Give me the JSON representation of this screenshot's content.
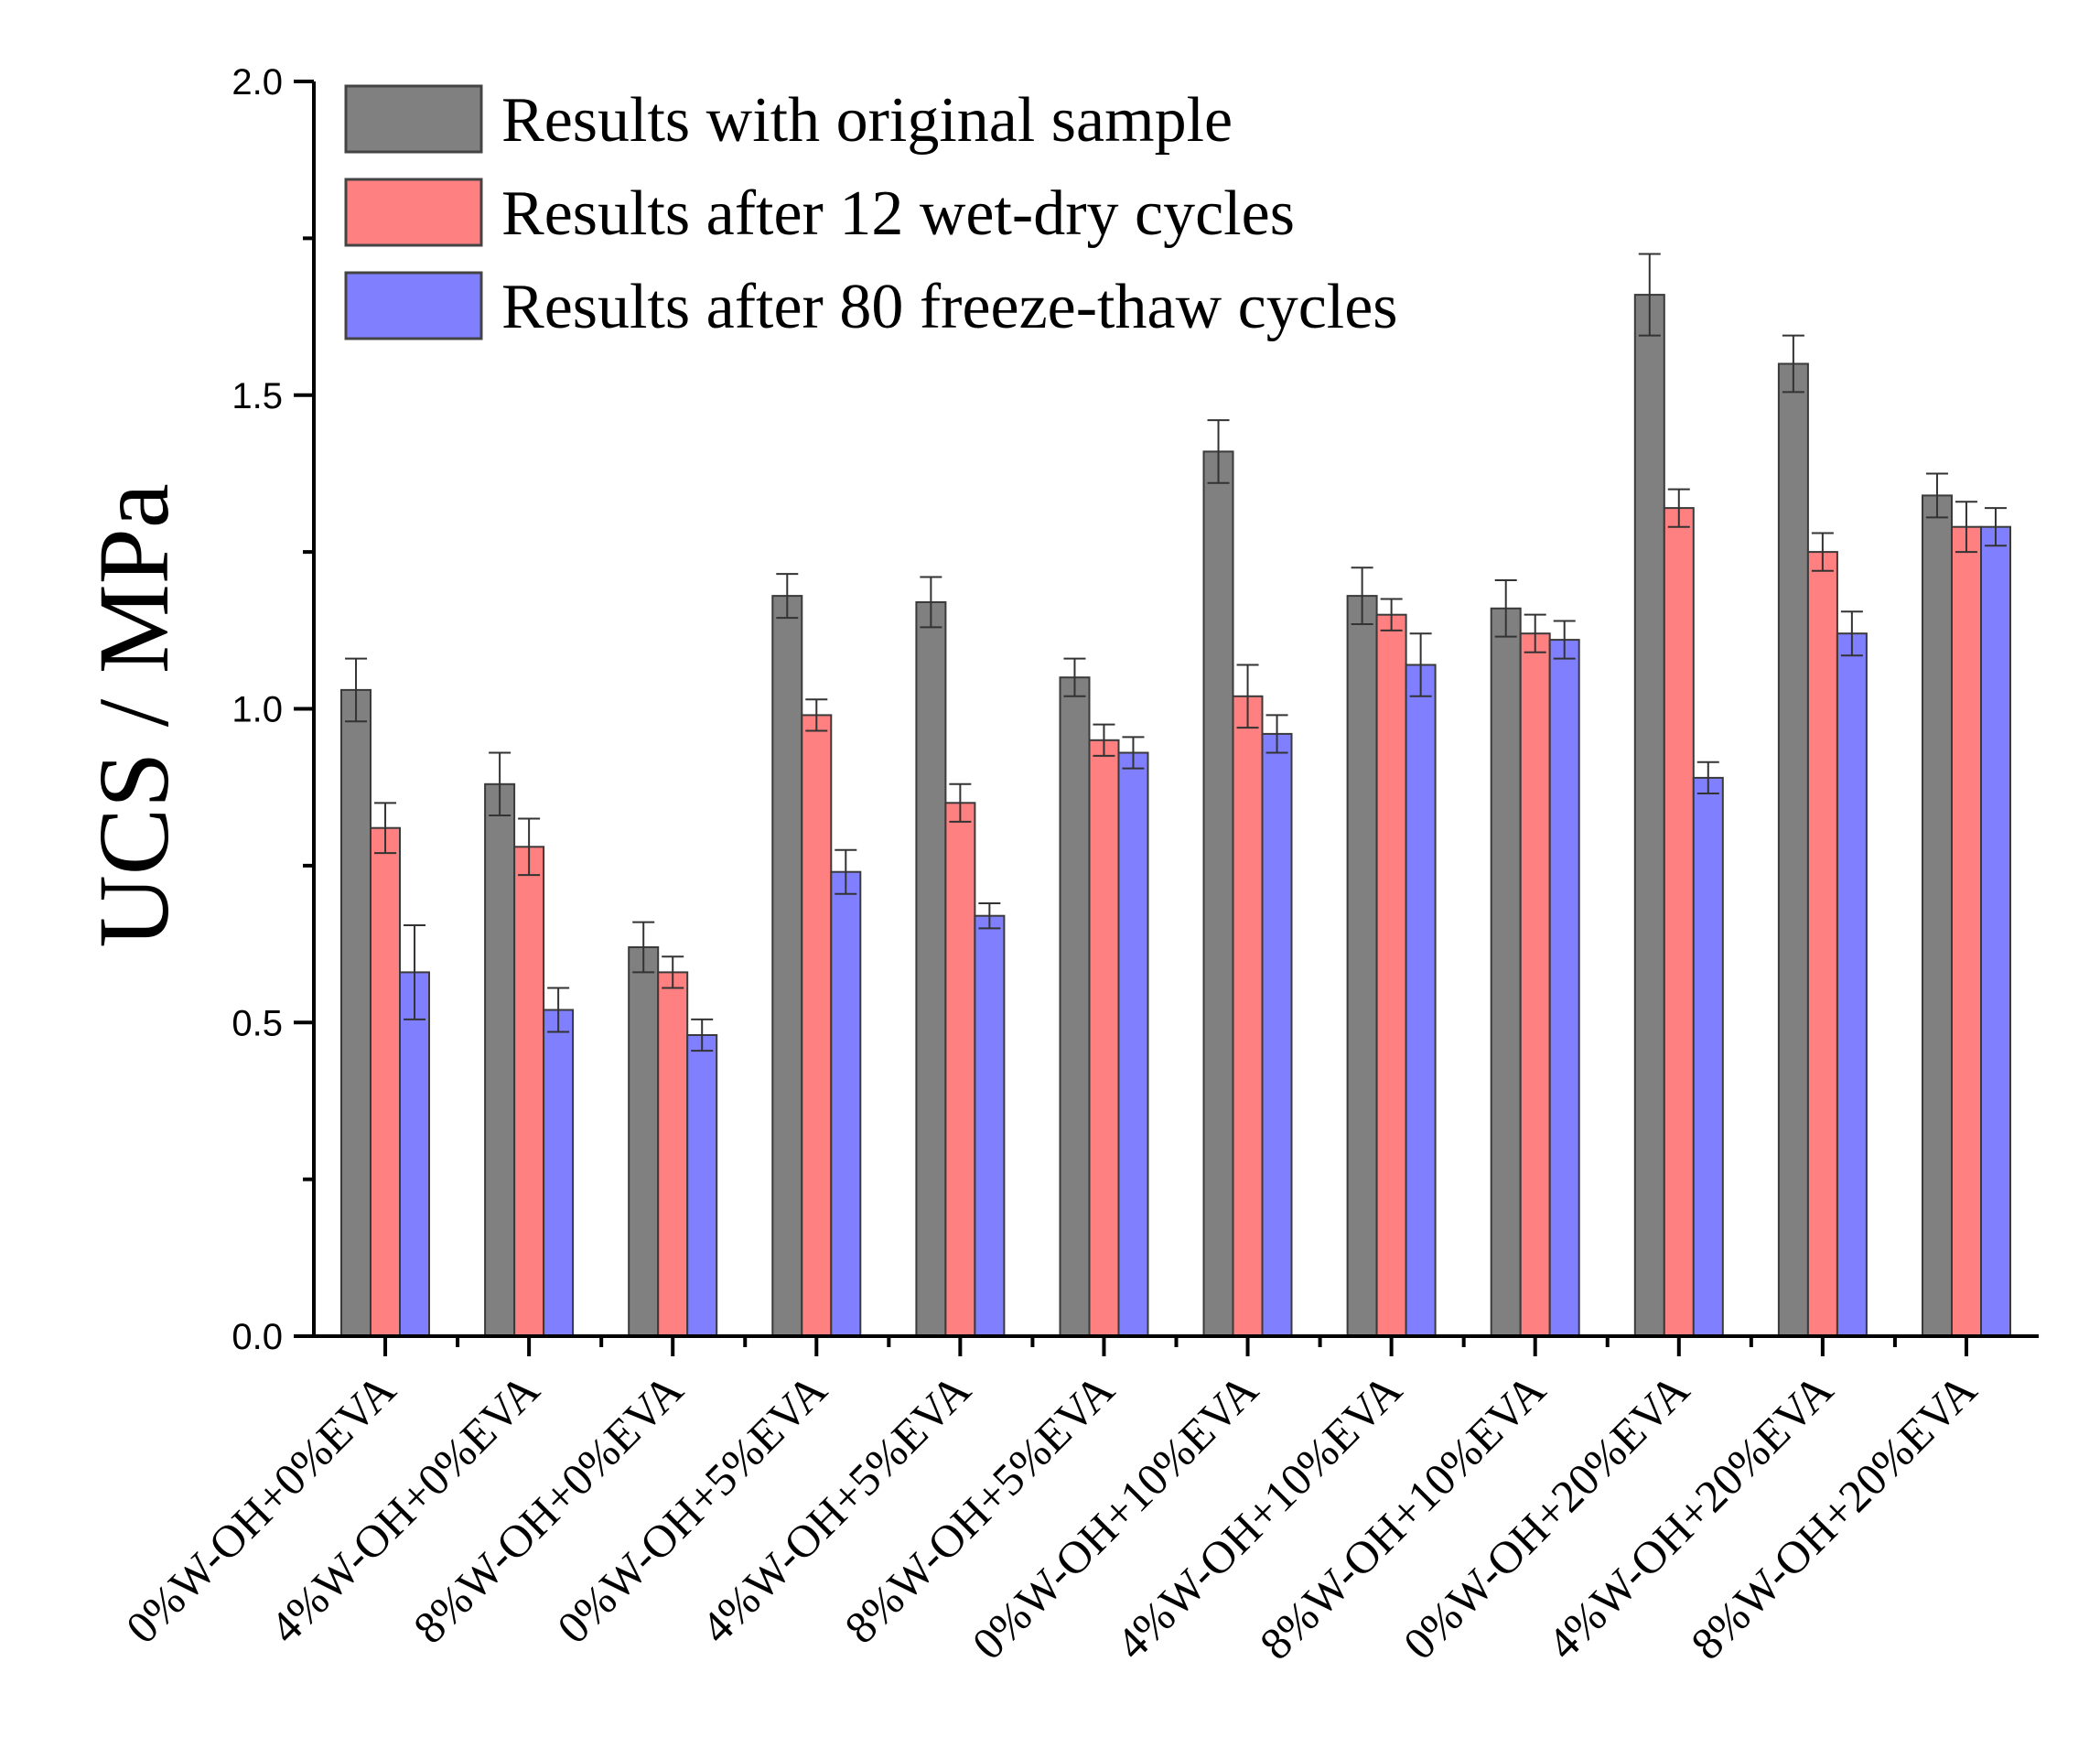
{
  "chart_data": {
    "type": "bar",
    "title": "",
    "xlabel": "",
    "ylabel": "UCS / MPa",
    "ylim": [
      0,
      2.0
    ],
    "yticks": [
      "0.0",
      "0.5",
      "1.0",
      "1.5",
      "2.0"
    ],
    "legend_position": "top-left",
    "categories": [
      "0%W-OH+0%EVA",
      "4%W-OH+0%EVA",
      "8%W-OH+0%EVA",
      "0%W-OH+5%EVA",
      "4%W-OH+5%EVA",
      "8%W-OH+5%EVA",
      "0%W-OH+10%EVA",
      "4%W-OH+10%EVA",
      "8%W-OH+10%EVA",
      "0%W-OH+20%EVA",
      "4%W-OH+20%EVA",
      "8%W-OH+20%EVA"
    ],
    "series": [
      {
        "name": "Results with original sample",
        "color": "#808080",
        "values": [
          1.03,
          0.88,
          0.62,
          1.18,
          1.17,
          1.05,
          1.41,
          1.18,
          1.16,
          1.66,
          1.55,
          1.34
        ],
        "errors": [
          0.05,
          0.05,
          0.04,
          0.035,
          0.04,
          0.03,
          0.05,
          0.045,
          0.045,
          0.065,
          0.045,
          0.035
        ]
      },
      {
        "name": "Results after 12 wet-dry cycles",
        "color": "#ff8080",
        "values": [
          0.81,
          0.78,
          0.58,
          0.99,
          0.85,
          0.95,
          1.02,
          1.15,
          1.12,
          1.32,
          1.25,
          1.29
        ],
        "errors": [
          0.04,
          0.045,
          0.025,
          0.025,
          0.03,
          0.025,
          0.05,
          0.025,
          0.03,
          0.03,
          0.03,
          0.04
        ]
      },
      {
        "name": "Results after 80 freeze-thaw cycles",
        "color": "#8080ff",
        "values": [
          0.58,
          0.52,
          0.48,
          0.74,
          0.67,
          0.93,
          0.96,
          1.07,
          1.11,
          0.89,
          1.12,
          1.29
        ],
        "errors": [
          0.075,
          0.035,
          0.025,
          0.035,
          0.02,
          0.025,
          0.03,
          0.05,
          0.03,
          0.025,
          0.035,
          0.03
        ]
      }
    ]
  }
}
